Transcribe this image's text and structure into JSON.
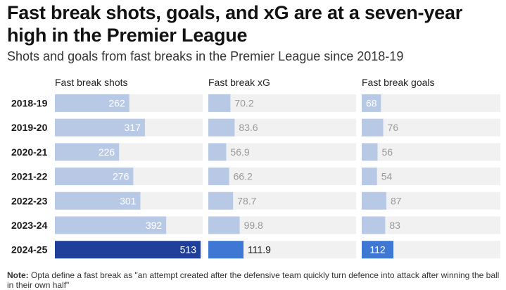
{
  "title": "Fast break shots, goals, and xG are at a seven-year high in the Premier League",
  "subtitle": "Shots and goals from fast breaks in the Premier League since 2018-19",
  "note_label": "Note:",
  "note_text": "Opta define a fast break as \"an attempt created after the defensive team quickly turn defence into attack after winning the ball in their own half\"",
  "colors": {
    "highlight_shots": "#1f3f9a",
    "highlight_other": "#3e78d4",
    "base_bar": "#b8c9e6",
    "track": "#f1f1f1"
  },
  "chart_data": {
    "type": "bar",
    "orientation": "horizontal",
    "categories": [
      "2018-19",
      "2019-20",
      "2020-21",
      "2021-22",
      "2022-23",
      "2023-24",
      "2024-25"
    ],
    "highlight": "2024-25",
    "series": [
      {
        "name": "Fast break shots",
        "values": [
          262,
          317,
          226,
          276,
          301,
          392,
          513
        ]
      },
      {
        "name": "Fast break xG",
        "values": [
          "70.2",
          "83.6",
          "56.9",
          "66.2",
          "78.7",
          "99.8",
          "111.9"
        ]
      },
      {
        "name": "Fast break goals",
        "values": [
          68,
          76,
          56,
          54,
          87,
          83,
          112
        ]
      }
    ]
  }
}
